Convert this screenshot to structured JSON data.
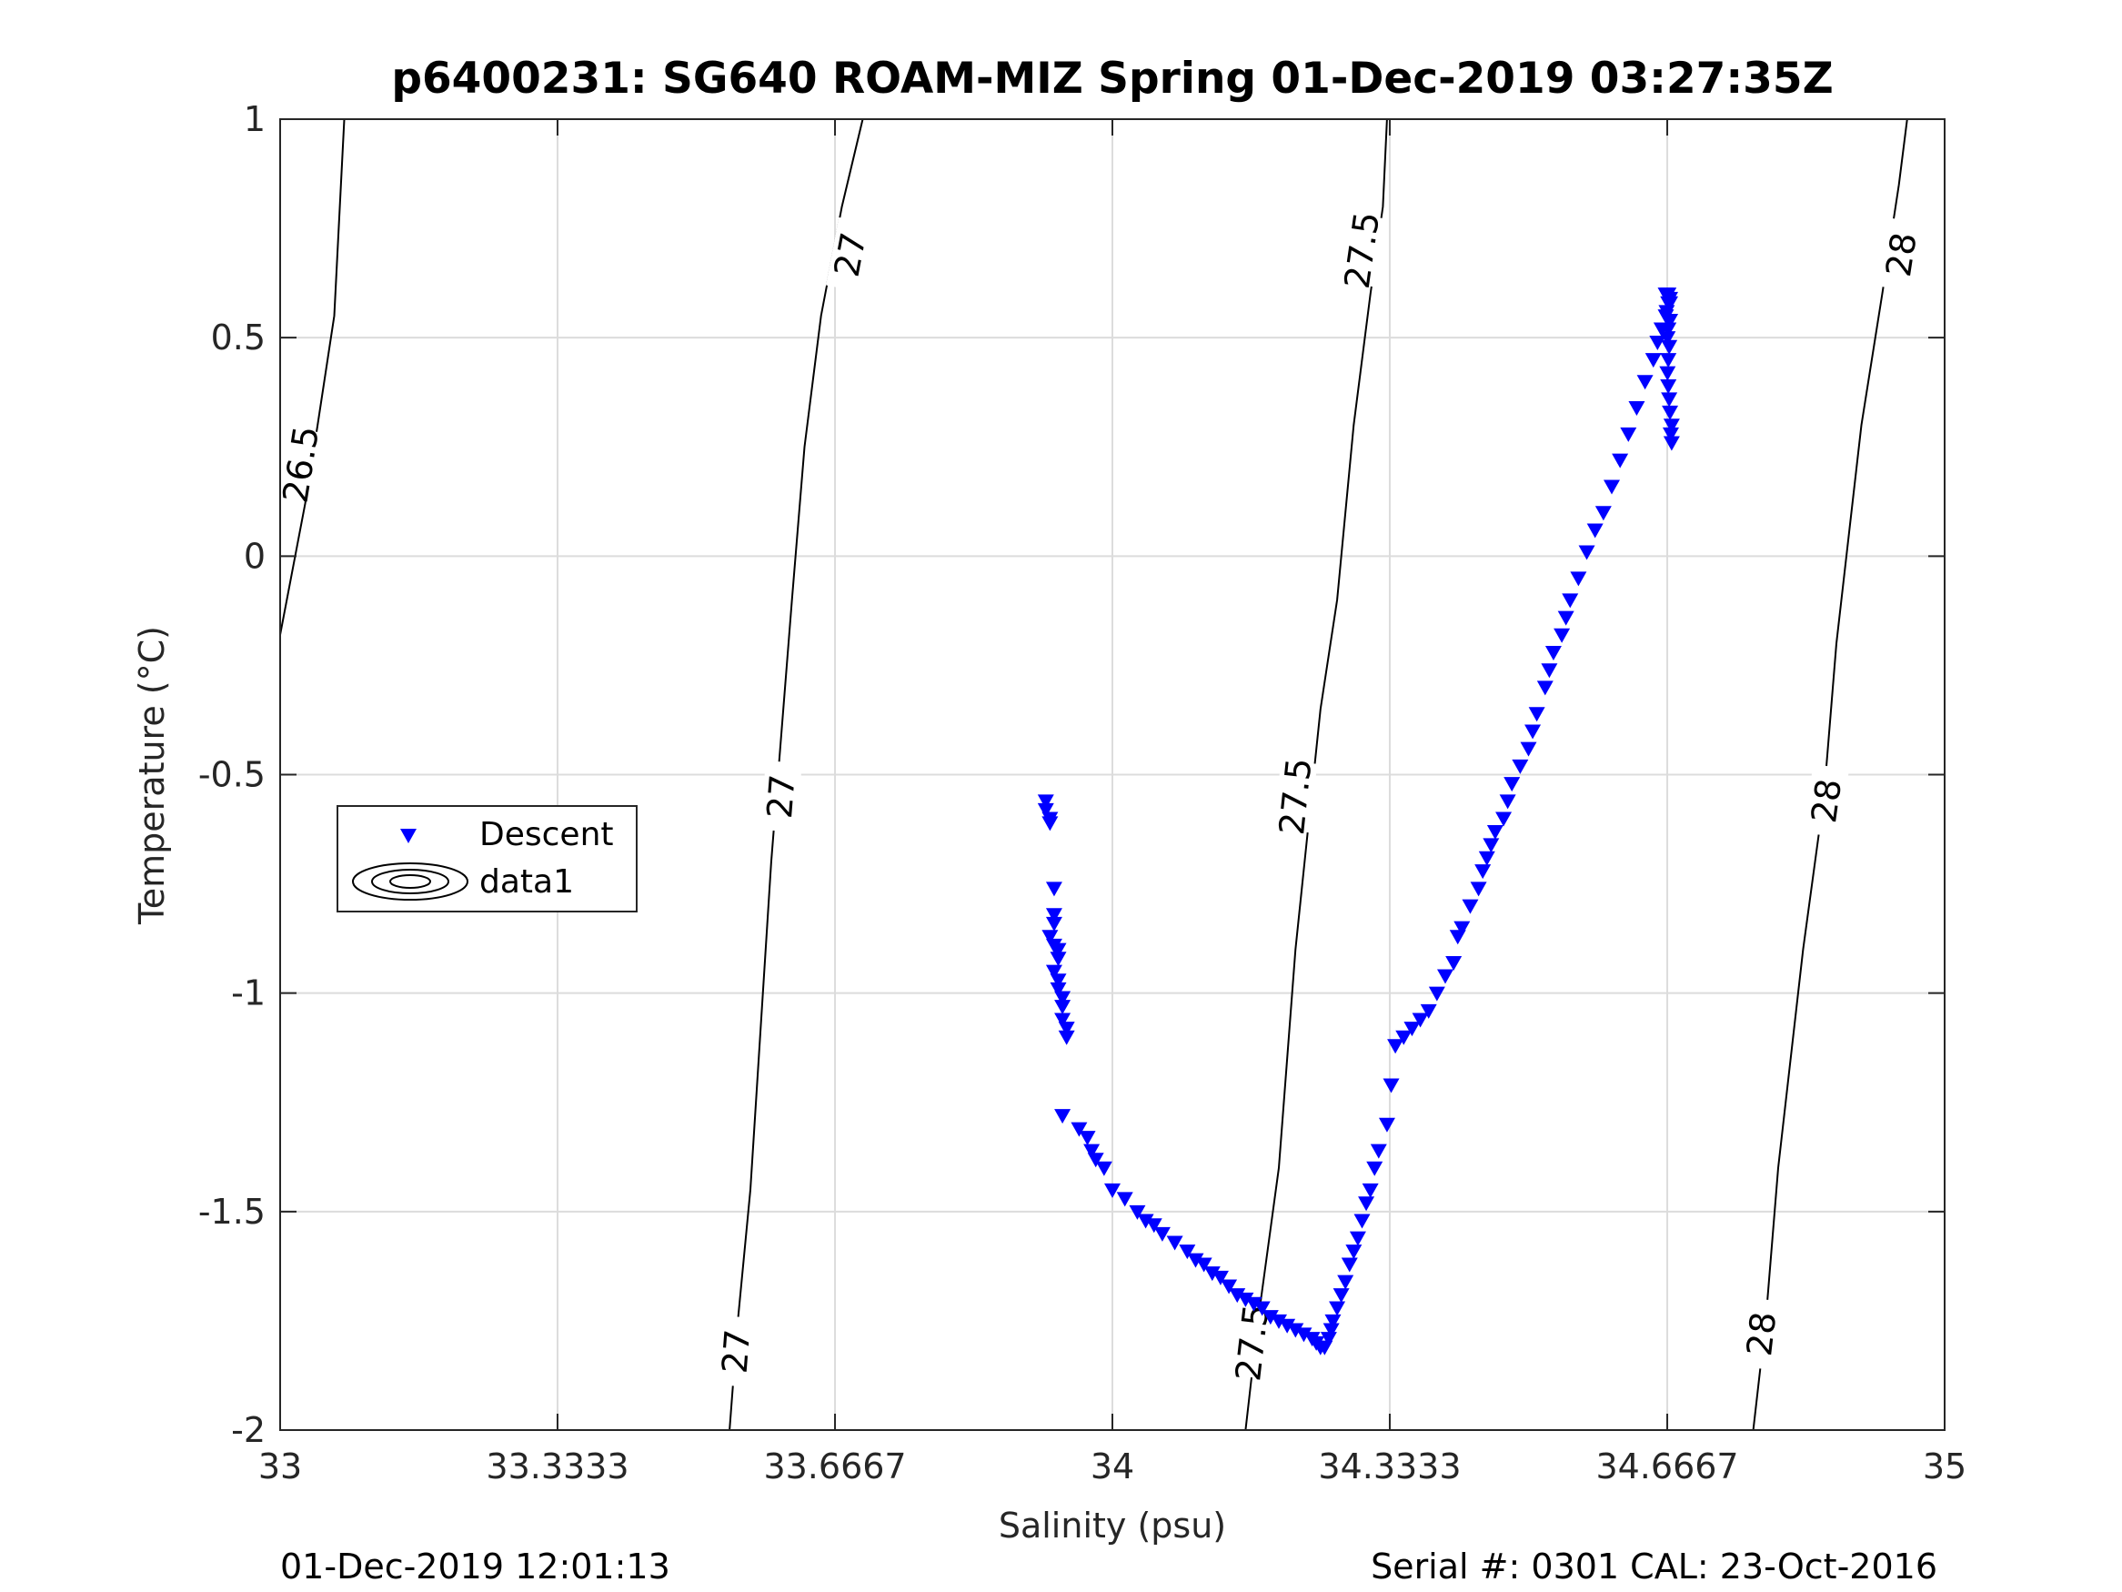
{
  "chart_data": {
    "type": "scatter",
    "title": "p6400231: SG640 ROAM-MIZ Spring 01-Dec-2019 03:27:35Z",
    "xlabel": "Salinity (psu)",
    "ylabel": "Temperature (°C)",
    "xlim": [
      33,
      35
    ],
    "ylim": [
      -2,
      1
    ],
    "x_ticks": [
      "33",
      "33.3333",
      "33.6667",
      "34",
      "34.3333",
      "34.6667",
      "35"
    ],
    "y_ticks": [
      "1",
      "0.5",
      "0",
      "-0.5",
      "-1",
      "-1.5",
      "-2"
    ],
    "grid": true,
    "legend": {
      "placement": "center-left",
      "entries": [
        "Descent",
        "data1"
      ]
    },
    "colors": {
      "descent": "#0000ff",
      "contour": "#000000",
      "grid": "#dcdcdc"
    },
    "density_contours": [
      {
        "label": "26.5",
        "points": [
          [
            33.0,
            -0.18
          ],
          [
            33.03,
            0.12
          ],
          [
            33.045,
            0.3
          ],
          [
            33.065,
            0.55
          ],
          [
            33.077,
            1.0
          ]
        ],
        "label_positions": [
          [
            33.025,
            0.21
          ]
        ]
      },
      {
        "label": "27",
        "points": [
          [
            33.54,
            -2.0
          ],
          [
            33.55,
            -1.75
          ],
          [
            33.565,
            -1.45
          ],
          [
            33.59,
            -0.7
          ],
          [
            33.615,
            -0.1
          ],
          [
            33.63,
            0.25
          ],
          [
            33.65,
            0.55
          ],
          [
            33.675,
            0.8
          ],
          [
            33.7,
            1.0
          ]
        ],
        "label_positions": [
          [
            33.548,
            -1.82
          ],
          [
            33.602,
            -0.55
          ],
          [
            33.685,
            0.69
          ]
        ]
      },
      {
        "label": "27.5",
        "points": [
          [
            34.16,
            -2.0
          ],
          [
            34.175,
            -1.75
          ],
          [
            34.2,
            -1.4
          ],
          [
            34.22,
            -0.9
          ],
          [
            34.25,
            -0.35
          ],
          [
            34.27,
            -0.1
          ],
          [
            34.29,
            0.3
          ],
          [
            34.31,
            0.6
          ],
          [
            34.325,
            0.8
          ],
          [
            34.33,
            1.0
          ]
        ],
        "label_positions": [
          [
            34.168,
            -1.8
          ],
          [
            34.22,
            -0.55
          ],
          [
            34.3,
            0.7
          ]
        ]
      },
      {
        "label": "28",
        "points": [
          [
            34.77,
            -2.0
          ],
          [
            34.785,
            -1.75
          ],
          [
            34.8,
            -1.4
          ],
          [
            34.83,
            -0.9
          ],
          [
            34.855,
            -0.55
          ],
          [
            34.87,
            -0.2
          ],
          [
            34.9,
            0.3
          ],
          [
            34.925,
            0.6
          ],
          [
            34.945,
            0.85
          ],
          [
            34.955,
            1.0
          ]
        ],
        "label_positions": [
          [
            34.78,
            -1.78
          ],
          [
            34.858,
            -0.56
          ],
          [
            34.948,
            0.69
          ]
        ]
      }
    ],
    "series": [
      {
        "name": "Descent",
        "marker": "down-triangle",
        "color": "#0000ff",
        "x": [
          33.92,
          33.92,
          33.925,
          33.925,
          33.93,
          33.93,
          33.93,
          33.925,
          33.93,
          33.935,
          33.935,
          33.93,
          33.935,
          33.935,
          33.94,
          33.94,
          33.94,
          33.945,
          33.945,
          33.94,
          33.96,
          33.97,
          33.975,
          33.98,
          33.99,
          34.0,
          34.015,
          34.03,
          34.04,
          34.05,
          34.06,
          34.075,
          34.09,
          34.1,
          34.11,
          34.12,
          34.13,
          34.14,
          34.15,
          34.16,
          34.17,
          34.18,
          34.19,
          34.2,
          34.21,
          34.22,
          34.23,
          34.24,
          34.245,
          34.25,
          34.255,
          34.26,
          34.263,
          34.265,
          34.27,
          34.275,
          34.28,
          34.285,
          34.29,
          34.295,
          34.3,
          34.305,
          34.31,
          34.315,
          34.32,
          34.33,
          34.335,
          34.34,
          34.35,
          34.36,
          34.37,
          34.38,
          34.39,
          34.4,
          34.41,
          34.415,
          34.42,
          34.43,
          34.44,
          34.445,
          34.45,
          34.455,
          34.46,
          34.47,
          34.475,
          34.48,
          34.49,
          34.5,
          34.505,
          34.51,
          34.52,
          34.525,
          34.53,
          34.54,
          34.545,
          34.55,
          34.56,
          34.57,
          34.58,
          34.59,
          34.6,
          34.61,
          34.62,
          34.63,
          34.64,
          34.65,
          34.655,
          34.66,
          34.665,
          34.67,
          34.665,
          34.668,
          34.67,
          34.668,
          34.666,
          34.67,
          34.668,
          34.667,
          34.669,
          34.668,
          34.667,
          34.668,
          34.669,
          34.67,
          34.672,
          34.671,
          34.672
        ],
        "y": [
          -0.56,
          -0.58,
          -0.61,
          -0.6,
          -0.76,
          -0.82,
          -0.84,
          -0.87,
          -0.89,
          -0.9,
          -0.92,
          -0.95,
          -0.97,
          -0.99,
          -1.01,
          -1.03,
          -1.06,
          -1.08,
          -1.1,
          -1.28,
          -1.31,
          -1.33,
          -1.36,
          -1.38,
          -1.4,
          -1.45,
          -1.47,
          -1.5,
          -1.52,
          -1.53,
          -1.55,
          -1.57,
          -1.59,
          -1.61,
          -1.62,
          -1.64,
          -1.65,
          -1.67,
          -1.69,
          -1.7,
          -1.71,
          -1.72,
          -1.74,
          -1.75,
          -1.76,
          -1.77,
          -1.78,
          -1.79,
          -1.8,
          -1.81,
          -1.81,
          -1.79,
          -1.77,
          -1.75,
          -1.72,
          -1.69,
          -1.66,
          -1.62,
          -1.59,
          -1.56,
          -1.52,
          -1.48,
          -1.45,
          -1.4,
          -1.36,
          -1.3,
          -1.21,
          -1.12,
          -1.1,
          -1.08,
          -1.06,
          -1.04,
          -1.0,
          -0.96,
          -0.93,
          -0.87,
          -0.85,
          -0.8,
          -0.76,
          -0.72,
          -0.69,
          -0.66,
          -0.63,
          -0.6,
          -0.56,
          -0.52,
          -0.48,
          -0.44,
          -0.4,
          -0.36,
          -0.3,
          -0.26,
          -0.22,
          -0.18,
          -0.14,
          -0.1,
          -0.05,
          0.01,
          0.06,
          0.1,
          0.16,
          0.22,
          0.28,
          0.34,
          0.4,
          0.45,
          0.49,
          0.52,
          0.55,
          0.58,
          0.6,
          0.6,
          0.59,
          0.58,
          0.56,
          0.54,
          0.52,
          0.5,
          0.48,
          0.45,
          0.42,
          0.39,
          0.36,
          0.33,
          0.3,
          0.28,
          0.26
        ]
      }
    ],
    "annotations": {
      "left": "01-Dec-2019 12:01:13",
      "right": "Serial #: 0301  CAL: 23-Oct-2016"
    }
  }
}
